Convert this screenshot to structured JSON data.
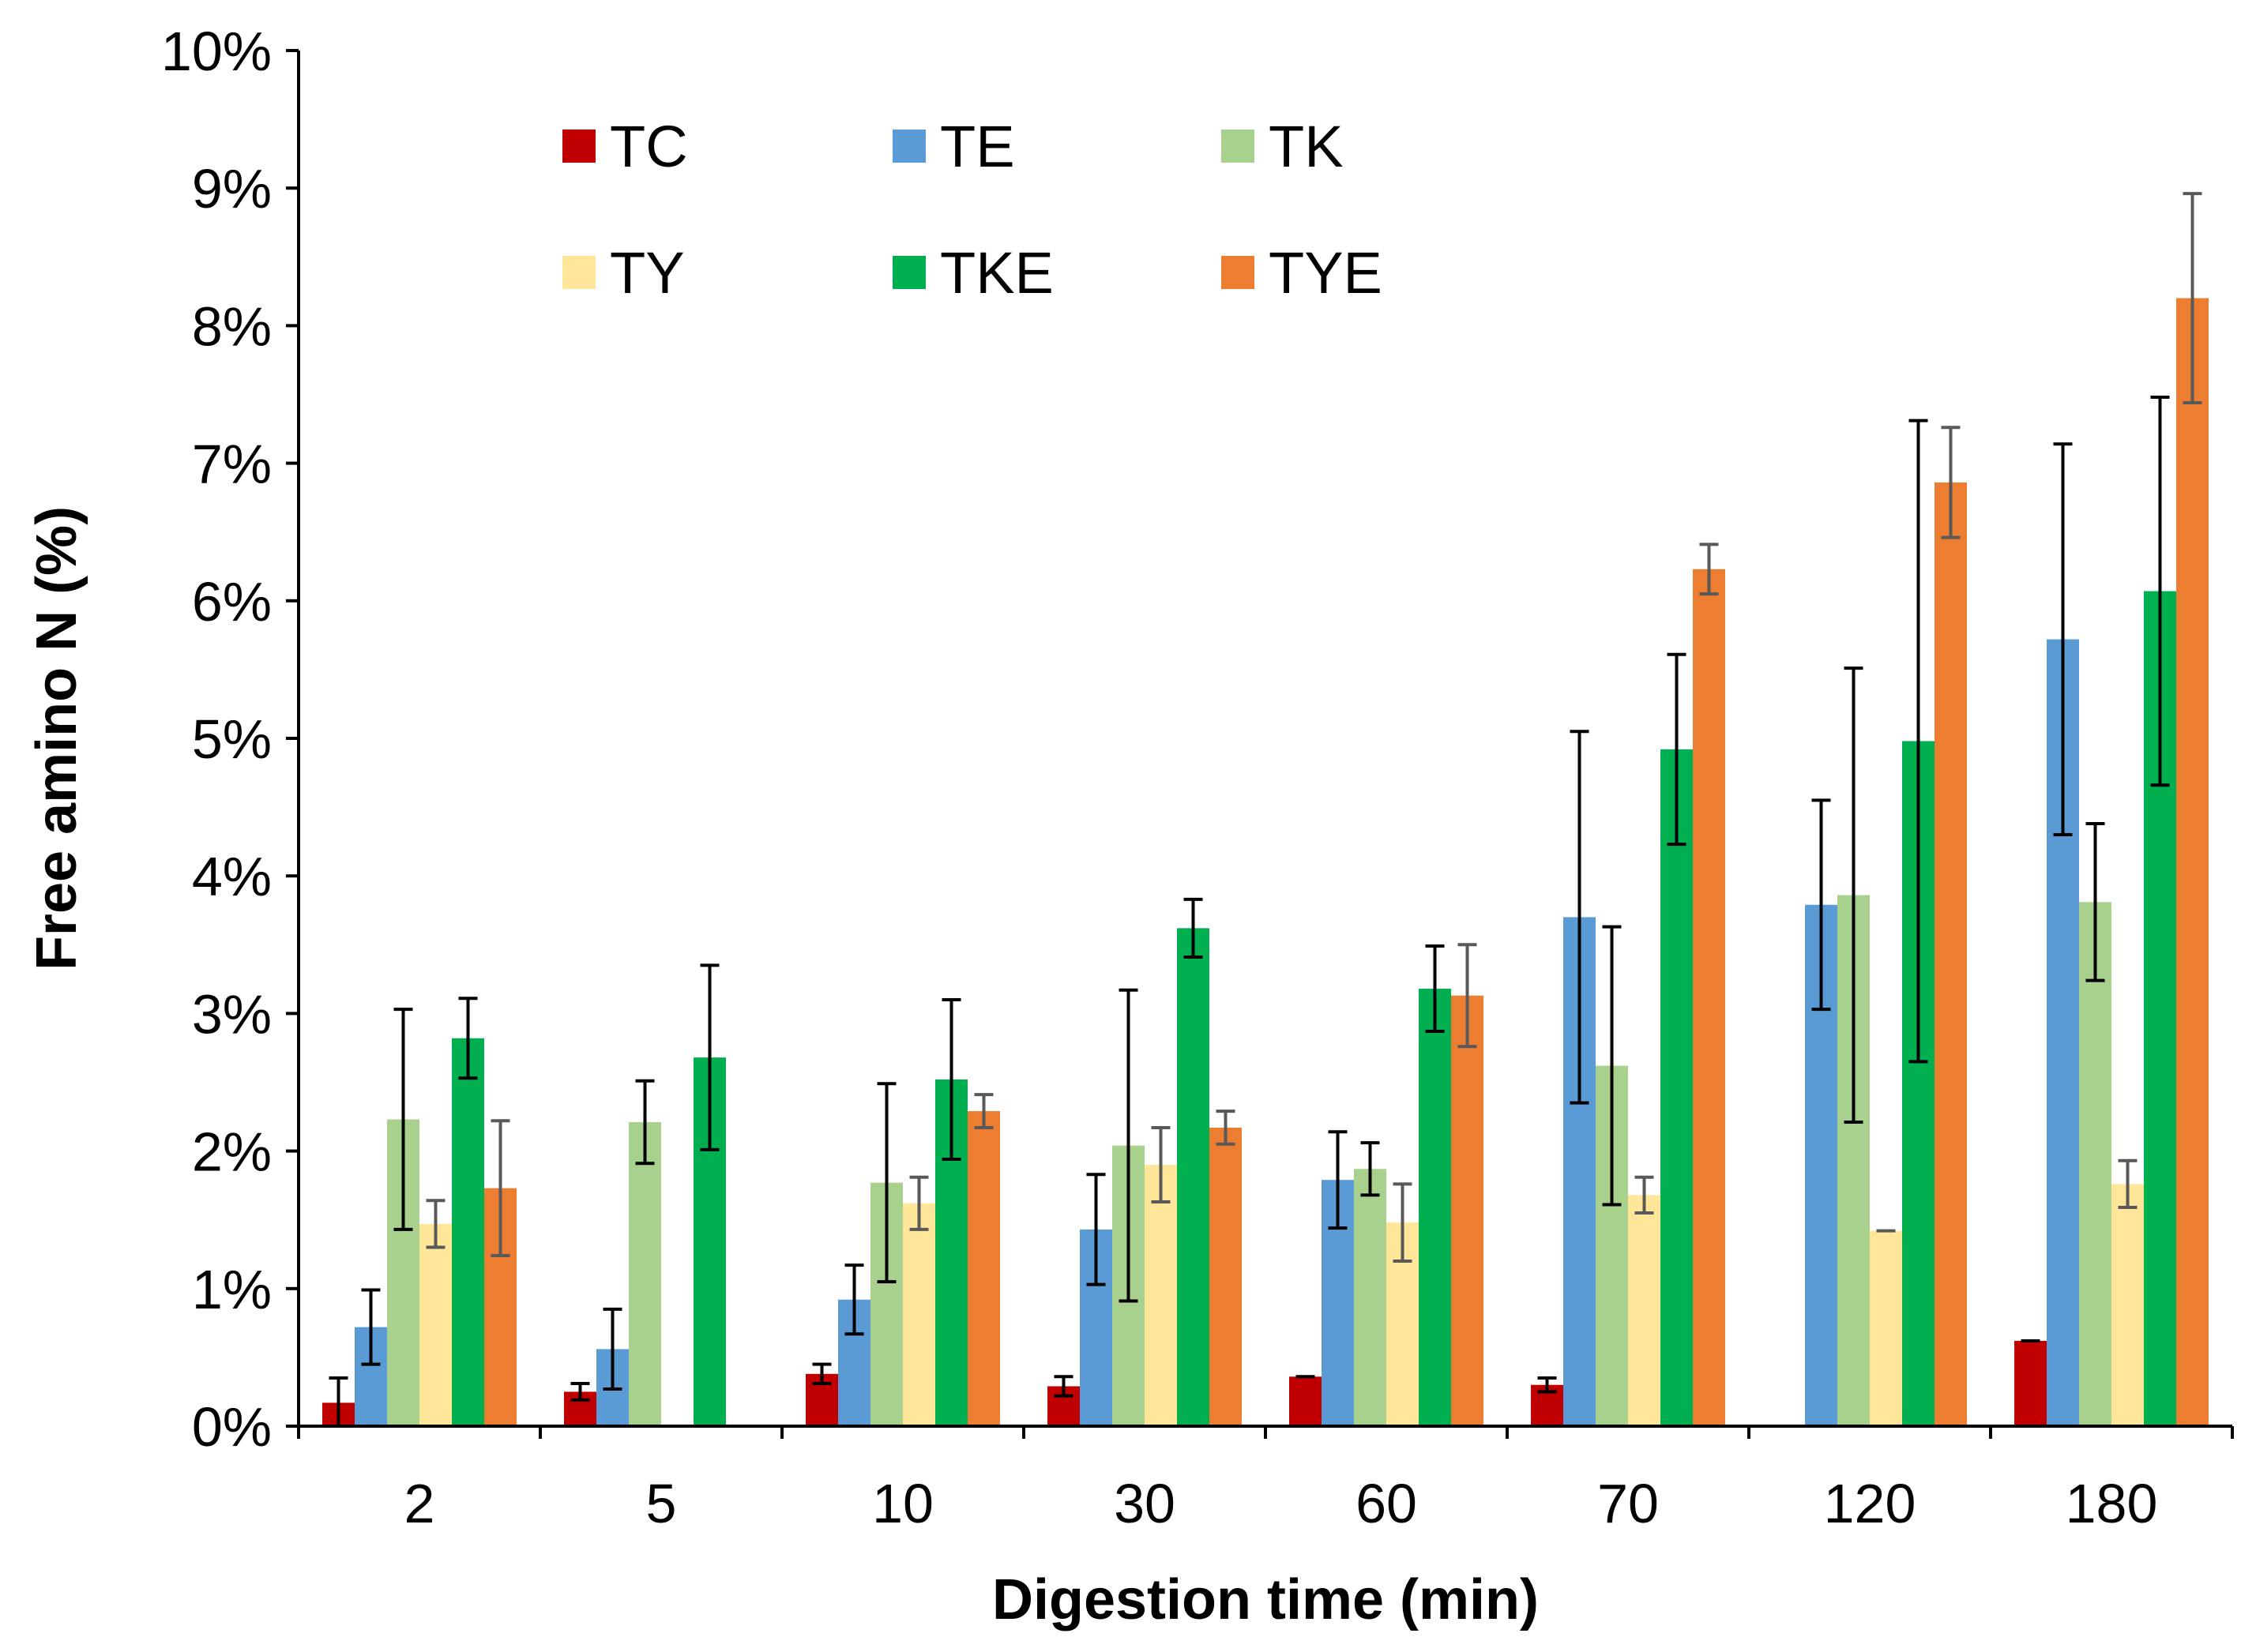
{
  "chart_data": {
    "type": "bar",
    "title": "",
    "xlabel": "Digestion time (min)",
    "ylabel": "Free amino N (%)",
    "ylim": [
      0,
      10
    ],
    "y_tick_labels": [
      "0%",
      "1%",
      "2%",
      "3%",
      "4%",
      "5%",
      "6%",
      "7%",
      "8%",
      "9%",
      "10%"
    ],
    "categories": [
      "2",
      "5",
      "10",
      "30",
      "60",
      "70",
      "120",
      "180"
    ],
    "legend_position": "top-left",
    "series": [
      {
        "name": "TC",
        "color": "#c00000",
        "error_color": "#000000",
        "values": [
          0.17,
          0.25,
          0.38,
          0.29,
          0.36,
          0.3,
          null,
          0.62
        ],
        "errors": [
          0.18,
          0.06,
          0.07,
          0.07,
          0.0,
          0.05,
          null,
          0.0
        ]
      },
      {
        "name": "TE",
        "color": "#5b9bd5",
        "error_color": "#000000",
        "values": [
          0.72,
          0.56,
          0.92,
          1.43,
          1.79,
          3.7,
          3.79,
          5.72
        ],
        "errors": [
          0.27,
          0.29,
          0.25,
          0.4,
          0.35,
          1.35,
          0.76,
          1.42
        ]
      },
      {
        "name": "TK",
        "color": "#a9d18e",
        "error_color": "#000000",
        "values": [
          2.23,
          2.21,
          1.77,
          2.04,
          1.87,
          2.62,
          3.86,
          3.81
        ],
        "errors": [
          0.8,
          0.3,
          0.72,
          1.13,
          0.19,
          1.01,
          1.65,
          0.57
        ]
      },
      {
        "name": "TY",
        "color": "#ffe699",
        "error_color": "#595959",
        "values": [
          1.47,
          null,
          1.62,
          1.9,
          1.48,
          1.68,
          1.42,
          1.76
        ],
        "errors": [
          0.17,
          null,
          0.19,
          0.27,
          0.28,
          0.13,
          0.0,
          0.17
        ]
      },
      {
        "name": "TKE",
        "color": "#00b050",
        "error_color": "#000000",
        "values": [
          2.82,
          2.68,
          2.52,
          3.62,
          3.18,
          4.92,
          4.98,
          6.07
        ],
        "errors": [
          0.29,
          0.67,
          0.58,
          0.21,
          0.31,
          0.69,
          2.33,
          1.41
        ]
      },
      {
        "name": "TYE",
        "color": "#ed7d31",
        "error_color": "#595959",
        "values": [
          1.73,
          null,
          2.29,
          2.17,
          3.13,
          6.23,
          6.86,
          8.2
        ],
        "errors": [
          0.49,
          null,
          0.12,
          0.12,
          0.37,
          0.18,
          0.4,
          0.76
        ]
      }
    ]
  }
}
